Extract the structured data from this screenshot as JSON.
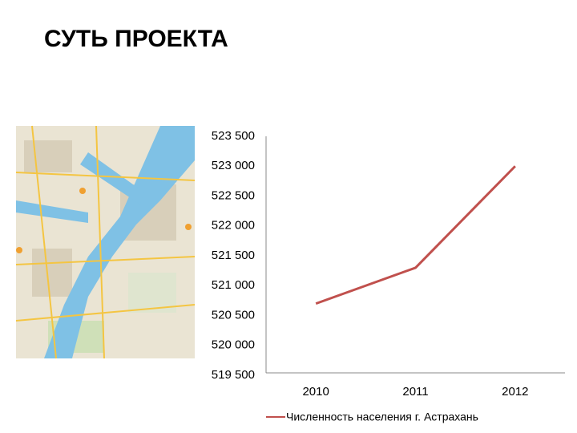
{
  "header": {
    "title": "СУТЬ ПРОЕКТА"
  },
  "chart_data": {
    "type": "line",
    "categories": [
      "2010",
      "2011",
      "2012"
    ],
    "series": [
      {
        "name": "Численность населения г. Астрахань",
        "color": "#c0504d",
        "values": [
          520700,
          521300,
          523000
        ]
      }
    ],
    "ylim": [
      519500,
      523500
    ],
    "yticks": [
      {
        "value": 519500,
        "label": "519 500"
      },
      {
        "value": 520000,
        "label": "520 000"
      },
      {
        "value": 520500,
        "label": "520 500"
      },
      {
        "value": 521000,
        "label": "521 000"
      },
      {
        "value": 521500,
        "label": "521 500"
      },
      {
        "value": 522000,
        "label": "522 000"
      },
      {
        "value": 522500,
        "label": "522 500"
      },
      {
        "value": 523000,
        "label": "523 000"
      },
      {
        "value": 523500,
        "label": "523 500"
      }
    ],
    "grid": false,
    "legend": "bottom"
  }
}
